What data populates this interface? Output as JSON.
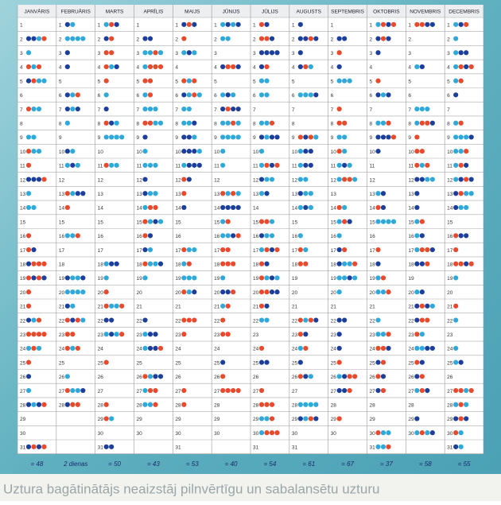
{
  "months": [
    {
      "name": "JANVĀRIS",
      "days": [
        1,
        2,
        3,
        4,
        5,
        6,
        7,
        8,
        9,
        10,
        11,
        12,
        13,
        14,
        15,
        16,
        17,
        18,
        19,
        20,
        21,
        22,
        23,
        24,
        25,
        26,
        27,
        28,
        29,
        30,
        31
      ]
    },
    {
      "name": "FEBRUĀRIS",
      "days": [
        1,
        2,
        3,
        4,
        5,
        6,
        7,
        8,
        9,
        10,
        11,
        12,
        13,
        14,
        15,
        16,
        17,
        18,
        19,
        20,
        21,
        22,
        23,
        24,
        25,
        26,
        27,
        28
      ]
    },
    {
      "name": "MARTS",
      "days": [
        1,
        2,
        3,
        4,
        5,
        6,
        7,
        8,
        9,
        10,
        11,
        12,
        13,
        14,
        15,
        16,
        17,
        18,
        19,
        20,
        21,
        22,
        23,
        24,
        25,
        26,
        27,
        28,
        29,
        30,
        31
      ]
    },
    {
      "name": "APRĪLIS",
      "days": [
        1,
        2,
        3,
        4,
        5,
        6,
        7,
        8,
        9,
        10,
        11,
        12,
        13,
        14,
        15,
        16,
        17,
        18,
        19,
        20,
        21,
        22,
        23,
        24,
        25,
        26,
        27,
        28,
        29,
        30
      ]
    },
    {
      "name": "MAIJS",
      "days": [
        1,
        2,
        3,
        4,
        5,
        6,
        7,
        8,
        9,
        10,
        11,
        12,
        13,
        14,
        15,
        16,
        17,
        18,
        19,
        20,
        21,
        22,
        23,
        24,
        25,
        26,
        27,
        28,
        29,
        30,
        31
      ]
    },
    {
      "name": "JŪNIJS",
      "days": [
        1,
        2,
        3,
        4,
        5,
        6,
        7,
        8,
        9,
        10,
        11,
        12,
        13,
        14,
        15,
        16,
        17,
        18,
        19,
        20,
        21,
        22,
        23,
        24,
        25,
        26,
        27,
        28,
        29,
        30
      ]
    },
    {
      "name": "JŪLIJS",
      "days": [
        1,
        2,
        3,
        4,
        5,
        6,
        7,
        8,
        9,
        10,
        11,
        12,
        13,
        14,
        15,
        16,
        17,
        18,
        19,
        20,
        21,
        22,
        23,
        24,
        25,
        26,
        27,
        28,
        29,
        30,
        31
      ]
    },
    {
      "name": "AUGUSTS",
      "days": [
        1,
        2,
        3,
        4,
        5,
        6,
        7,
        8,
        9,
        10,
        11,
        12,
        13,
        14,
        15,
        16,
        17,
        18,
        19,
        20,
        21,
        22,
        23,
        24,
        25,
        26,
        27,
        28,
        29,
        30,
        31
      ]
    },
    {
      "name": "SEPTEMBRIS",
      "days": [
        1,
        2,
        3,
        4,
        5,
        6,
        7,
        8,
        9,
        10,
        11,
        12,
        13,
        14,
        15,
        16,
        17,
        18,
        19,
        20,
        21,
        22,
        23,
        24,
        25,
        26,
        27,
        28,
        29,
        30
      ]
    },
    {
      "name": "OKTOBRIS",
      "days": [
        1,
        2,
        3,
        4,
        5,
        6,
        7,
        8,
        9,
        10,
        11,
        12,
        13,
        14,
        15,
        16,
        17,
        18,
        19,
        20,
        21,
        22,
        23,
        24,
        25,
        26,
        27,
        28,
        29,
        30,
        31
      ]
    },
    {
      "name": "NOVEMBRIS",
      "days": [
        1,
        2,
        3,
        4,
        5,
        6,
        7,
        8,
        9,
        10,
        11,
        12,
        13,
        14,
        15,
        16,
        17,
        18,
        19,
        20,
        21,
        22,
        23,
        24,
        25,
        26,
        27,
        28,
        29,
        30
      ]
    },
    {
      "name": "DECEMBRIS",
      "days": [
        1,
        2,
        3,
        4,
        5,
        6,
        7,
        8,
        9,
        10,
        11,
        12,
        13,
        14,
        15,
        16,
        17,
        18,
        19,
        20,
        21,
        22,
        23,
        24,
        25,
        26,
        27,
        28,
        29,
        30,
        31
      ]
    }
  ],
  "totals": [
    "= 48",
    "2 dienas",
    "= 50",
    "= 43",
    "= 53",
    "= 40",
    "= 54",
    "= 61",
    "= 67",
    "= 37",
    "= 58",
    "= 55"
  ],
  "footer": "Uztura bagātinātājs neaizstāj pilnvērtīgu un sabalansētu uzturu"
}
